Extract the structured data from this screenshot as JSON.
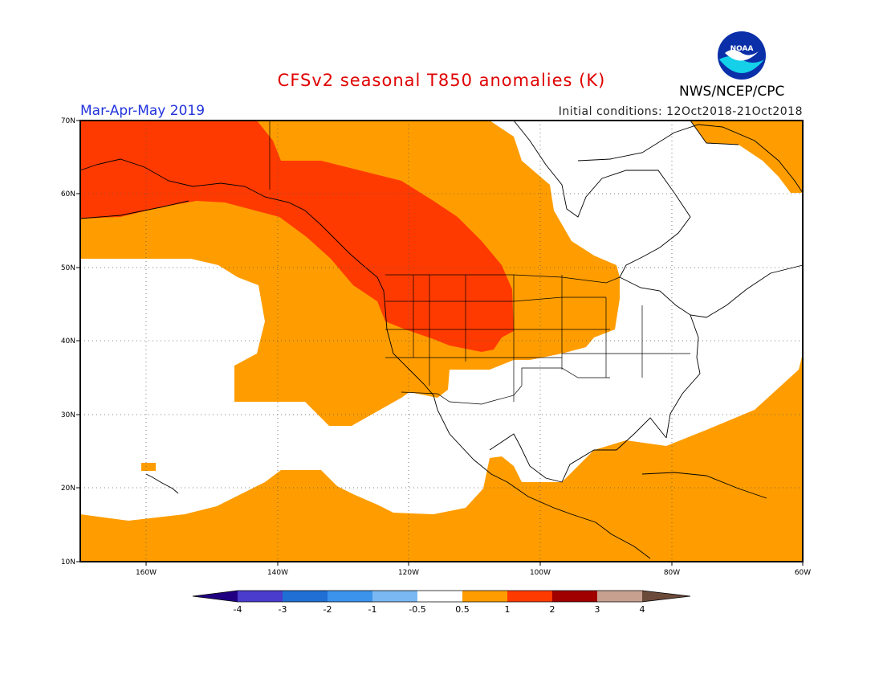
{
  "header": {
    "title": "CFSv2 seasonal T850 anomalies (K)",
    "season": "Mar-Apr-May 2019",
    "initial_conditions": "Initial conditions: 12Oct2018-21Oct2018",
    "agency": "NWS/NCEP/CPC",
    "logo_text": "NOAA"
  },
  "map": {
    "lat_labels": [
      "70N",
      "60N",
      "50N",
      "40N",
      "30N",
      "20N",
      "10N"
    ],
    "lon_labels": [
      "160W",
      "140W",
      "120W",
      "100W",
      "80W",
      "60W"
    ],
    "grid": true
  },
  "colorbar": {
    "labels": [
      "-4",
      "-3",
      "-2",
      "-1",
      "-0.5",
      "0.5",
      "1",
      "2",
      "3",
      "4"
    ],
    "colors": [
      "#200080",
      "#4a3ccc",
      "#1f6fd4",
      "#3b93ec",
      "#79b8f2",
      "#ffffff",
      "#ff9d00",
      "#ff3a00",
      "#a00000",
      "#c8a090",
      "#6b4a3a"
    ]
  },
  "colors": {
    "anom_0_5_to_1": "#ff9d00",
    "anom_1_to_2": "#ff3a00",
    "neutral": "#ffffff"
  }
}
